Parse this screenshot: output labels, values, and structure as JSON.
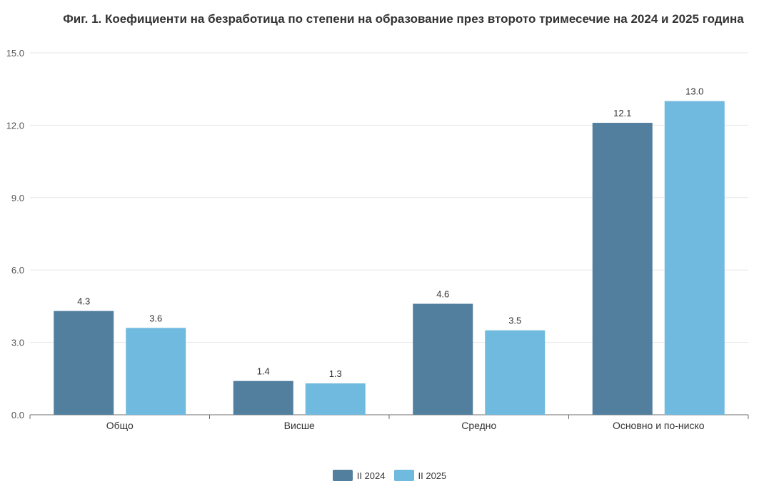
{
  "chart_data": {
    "type": "bar",
    "title": "Фиг. 1. Коефициенти на безработица по степени на образование през второто тримесечие на 2024 и 2025 година",
    "xlabel": "",
    "ylabel": "",
    "ylim": [
      0,
      15
    ],
    "yticks": [
      "0.0",
      "3.0",
      "6.0",
      "9.0",
      "12.0",
      "15.0"
    ],
    "grid": true,
    "legend_position": "bottom",
    "categories": [
      "Общо",
      "Висше",
      "Средно",
      "Основно и по-ниско"
    ],
    "series": [
      {
        "name": "II 2024",
        "color": "#527f9e",
        "values": [
          4.3,
          1.4,
          4.6,
          12.1
        ],
        "labels": [
          "4.3",
          "1.4",
          "4.6",
          "12.1"
        ]
      },
      {
        "name": "II 2025",
        "color": "#71badf",
        "values": [
          3.6,
          1.3,
          3.5,
          13.0
        ],
        "labels": [
          "3.6",
          "1.3",
          "3.5",
          "13.0"
        ]
      }
    ]
  }
}
